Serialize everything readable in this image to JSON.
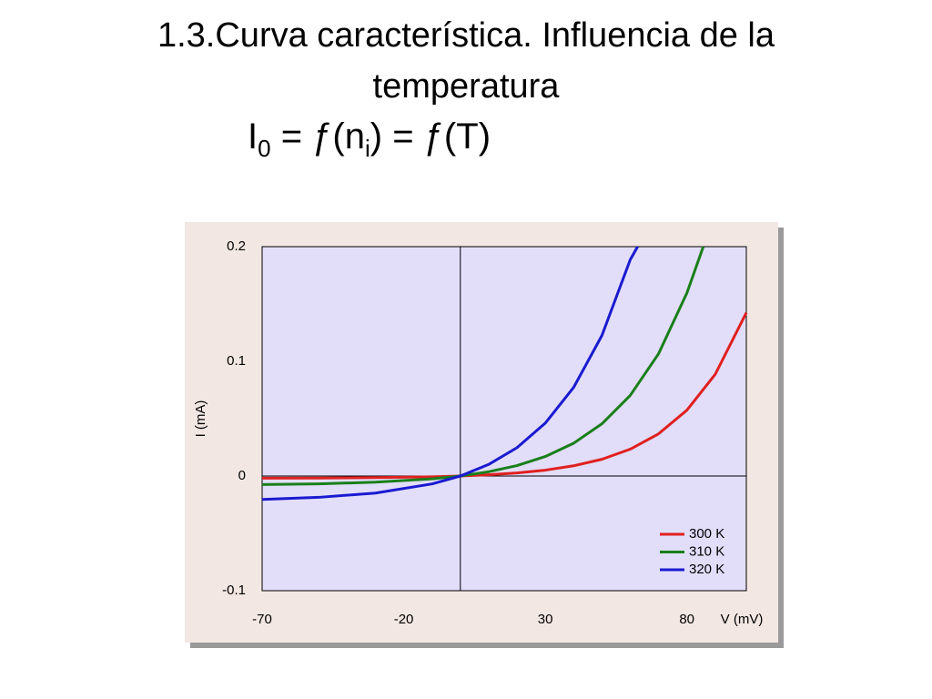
{
  "title_lines": [
    "1.3.Curva característica. Influencia de la",
    "temperatura"
  ],
  "formula": [
    "I",
    "0",
    " = ƒ(n",
    "i",
    ") = ƒ(T)"
  ],
  "chart_data": {
    "type": "line",
    "xlabel": "V (mV)",
    "ylabel": "I (mA)",
    "xlim": [
      -70,
      101
    ],
    "ylim": [
      -0.1,
      0.2
    ],
    "xticks": [
      -70,
      -20,
      30,
      80
    ],
    "yticks": [
      -0.1,
      0,
      0.1,
      0.2
    ],
    "legend": "lower right",
    "series": [
      {
        "name": "300 K",
        "color": "#e02020",
        "x": [
          -70,
          -50,
          -30,
          -10,
          0,
          10,
          20,
          30,
          40,
          50,
          60,
          70,
          80,
          90,
          101
        ],
        "values": [
          -0.0019,
          -0.0018,
          -0.0014,
          -0.0007,
          0,
          0.0011,
          0.0027,
          0.0051,
          0.0089,
          0.0146,
          0.0234,
          0.0368,
          0.0574,
          0.0886,
          0.1424
        ]
      },
      {
        "name": "310 K",
        "color": "#1a7f1a",
        "x": [
          -70,
          -50,
          -30,
          -10,
          0,
          10,
          20,
          30,
          40,
          50,
          60,
          70,
          80,
          85.8
        ],
        "values": [
          -0.0074,
          -0.0068,
          -0.0054,
          -0.0025,
          0,
          0.0037,
          0.0091,
          0.017,
          0.0286,
          0.0455,
          0.0703,
          0.1066,
          0.1595,
          0.2
        ]
      },
      {
        "name": "320 K",
        "color": "#1a1ad0",
        "x": [
          -70,
          -50,
          -30,
          -10,
          0,
          10,
          20,
          30,
          40,
          50,
          60,
          62.6
        ],
        "values": [
          -0.0204,
          -0.0186,
          -0.0149,
          -0.0069,
          0,
          0.0101,
          0.0247,
          0.0461,
          0.0772,
          0.1225,
          0.1886,
          0.2
        ]
      }
    ]
  }
}
